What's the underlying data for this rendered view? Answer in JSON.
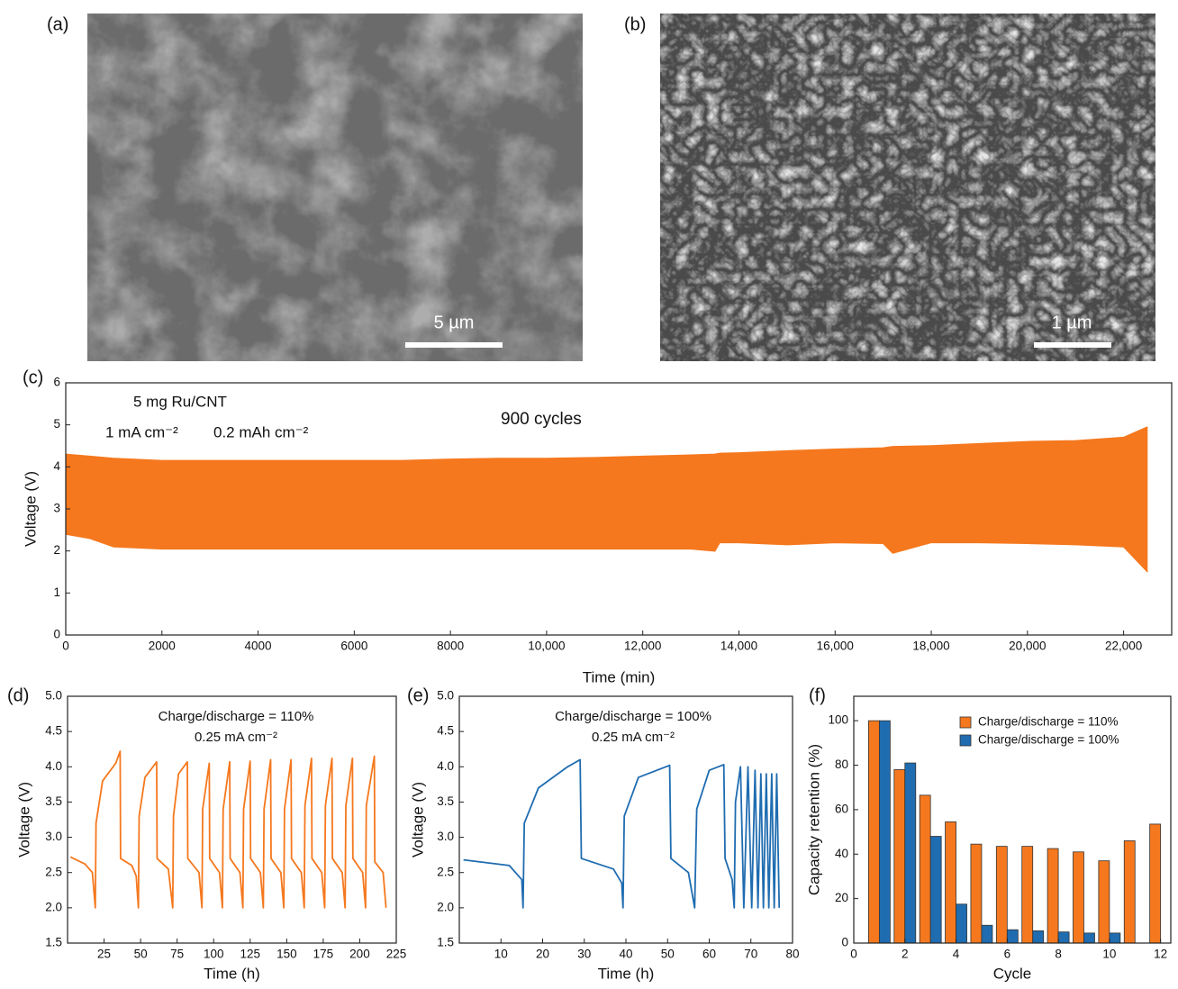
{
  "panels": {
    "a": {
      "label": "(a)",
      "scale_bar": "5 µm"
    },
    "b": {
      "label": "(b)",
      "scale_bar": "1 µm"
    }
  },
  "chart_data": [
    {
      "type": "band",
      "label": "(c)",
      "ylabel": "Voltage (V)",
      "xlabel": "Time (min)",
      "annotations": [
        "5 mg Ru/CNT",
        "1 mA cm⁻²",
        "0.2 mAh cm⁻²",
        "900 cycles"
      ],
      "color": "#f5781e",
      "x": [
        0,
        500,
        1000,
        2000,
        3000,
        4000,
        5000,
        6000,
        7000,
        8000,
        9000,
        10000,
        11000,
        12000,
        13000,
        13500,
        13600,
        14000,
        15000,
        16000,
        17000,
        17200,
        18000,
        19000,
        20000,
        21000,
        22000,
        22500
      ],
      "high": [
        4.3,
        4.25,
        4.2,
        4.15,
        4.15,
        4.15,
        4.15,
        4.15,
        4.15,
        4.18,
        4.2,
        4.2,
        4.22,
        4.25,
        4.28,
        4.3,
        4.32,
        4.33,
        4.38,
        4.42,
        4.45,
        4.48,
        4.5,
        4.55,
        4.6,
        4.62,
        4.7,
        4.95
      ],
      "low": [
        2.4,
        2.3,
        2.1,
        2.05,
        2.05,
        2.05,
        2.05,
        2.05,
        2.05,
        2.05,
        2.05,
        2.05,
        2.05,
        2.05,
        2.05,
        2.0,
        2.2,
        2.2,
        2.15,
        2.2,
        2.18,
        1.95,
        2.2,
        2.2,
        2.18,
        2.15,
        2.1,
        1.5
      ],
      "xlim": [
        0,
        23000
      ],
      "ylim": [
        0,
        6
      ],
      "xticks": [
        0,
        2000,
        4000,
        6000,
        8000,
        {
          "value": 10000,
          "label": "10,000"
        },
        {
          "value": 12000,
          "label": "12,000"
        },
        {
          "value": 14000,
          "label": "14,000"
        },
        {
          "value": 16000,
          "label": "16,000"
        },
        {
          "value": 18000,
          "label": "18,000"
        },
        {
          "value": 20000,
          "label": "20,000"
        },
        {
          "value": 22000,
          "label": "22,000"
        }
      ],
      "yticks": [
        0,
        1,
        2,
        3,
        4,
        5,
        6
      ]
    },
    {
      "type": "line",
      "label": "(d)",
      "ylabel": "Voltage (V)",
      "xlabel": "Time (h)",
      "annotations": [
        "Charge/discharge = 110%",
        "0.25 mA cm⁻²"
      ],
      "color": "#f5781e",
      "x": [
        2,
        12,
        17,
        19,
        19.5,
        24,
        33,
        36,
        36.3,
        44,
        47,
        48.5,
        49,
        53,
        61,
        61.3,
        69,
        72,
        72.5,
        76,
        82,
        82.3,
        90,
        92,
        92.5,
        97,
        97.3,
        104,
        106,
        106.5,
        111,
        111.3,
        118,
        120,
        120.5,
        125,
        125.3,
        132,
        134,
        134.5,
        139,
        139.3,
        146,
        148,
        148.5,
        153,
        153.3,
        160,
        162,
        162.5,
        167,
        167.3,
        174,
        176,
        176.5,
        181,
        181.3,
        188,
        190,
        190.5,
        195,
        195.3,
        202,
        204,
        204.5,
        210,
        210.3,
        216,
        218
      ],
      "values": [
        2.72,
        2.62,
        2.5,
        2.0,
        3.2,
        3.8,
        4.05,
        4.22,
        2.7,
        2.6,
        2.45,
        2.0,
        3.3,
        3.85,
        4.07,
        2.7,
        2.55,
        2.0,
        3.3,
        3.9,
        4.07,
        2.7,
        2.5,
        2.0,
        3.4,
        4.05,
        2.7,
        2.5,
        2.0,
        3.4,
        4.07,
        2.7,
        2.5,
        2.0,
        3.4,
        4.08,
        2.7,
        2.5,
        2.0,
        3.4,
        4.1,
        2.7,
        2.5,
        2.0,
        3.4,
        4.1,
        2.7,
        2.5,
        2.0,
        3.45,
        4.12,
        2.7,
        2.5,
        2.0,
        3.45,
        4.12,
        2.7,
        2.5,
        2.0,
        3.45,
        4.12,
        2.7,
        2.5,
        2.0,
        3.45,
        4.15,
        2.65,
        2.5,
        2.0
      ],
      "xlim": [
        0,
        225
      ],
      "ylim": [
        1.5,
        5
      ],
      "xticks": [
        25,
        50,
        75,
        100,
        125,
        150,
        175,
        200,
        225
      ],
      "yticks": [
        1.5,
        {
          "value": 2,
          "label": "2.0"
        },
        2.5,
        {
          "value": 3,
          "label": "3.0"
        },
        3.5,
        {
          "value": 4,
          "label": "4.0"
        },
        4.5,
        {
          "value": 5,
          "label": "5.0"
        }
      ]
    },
    {
      "type": "line",
      "label": "(e)",
      "ylabel": "Voltage (V)",
      "xlabel": "Time (h)",
      "annotations": [
        "Charge/discharge = 100%",
        "0.25 mA cm⁻²"
      ],
      "color": "#1f6cb0",
      "x": [
        1,
        12,
        15,
        15.3,
        15.6,
        19,
        26,
        29,
        29.3,
        37,
        39,
        39.3,
        39.6,
        43,
        50.5,
        50.8,
        55,
        56.5,
        57,
        60,
        63.5,
        63.8,
        65.5,
        66,
        66.3,
        67.5,
        68.3,
        69.3,
        70.2,
        71,
        71.7,
        72.4,
        73,
        73.7,
        74.3,
        75,
        75.6,
        76.2,
        76.8
      ],
      "values": [
        2.68,
        2.6,
        2.4,
        2.0,
        3.2,
        3.7,
        4.0,
        4.1,
        2.7,
        2.55,
        2.35,
        2.0,
        3.3,
        3.85,
        4.02,
        2.7,
        2.5,
        2.0,
        3.4,
        3.95,
        4.03,
        2.7,
        2.4,
        2.0,
        3.5,
        4.0,
        2.0,
        4.0,
        2.0,
        3.95,
        2.0,
        3.9,
        2.0,
        3.9,
        2.0,
        3.9,
        2.0,
        3.9,
        2.0
      ],
      "xlim": [
        0,
        80
      ],
      "ylim": [
        1.5,
        5
      ],
      "xticks": [
        10,
        20,
        30,
        40,
        50,
        60,
        70,
        80
      ],
      "yticks": [
        1.5,
        {
          "value": 2,
          "label": "2.0"
        },
        2.5,
        {
          "value": 3,
          "label": "3.0"
        },
        3.5,
        {
          "value": 4,
          "label": "4.0"
        },
        4.5,
        {
          "value": 5,
          "label": "5.0"
        }
      ]
    },
    {
      "type": "bar",
      "label": "(f)",
      "ylabel": "Capacity retention (%)",
      "xlabel": "Cycle",
      "x": [
        1,
        2,
        3,
        4,
        5,
        6,
        7,
        8,
        9,
        10,
        11,
        12
      ],
      "series": [
        {
          "name": "Charge/discharge = 110%",
          "color": "#f5781e",
          "values": [
            100,
            78,
            66.5,
            54.5,
            44.5,
            43.5,
            43.5,
            42.5,
            41,
            37,
            46,
            53.5
          ]
        },
        {
          "name": "Charge/discharge = 100%",
          "color": "#1f6cb0",
          "values": [
            100,
            81,
            48,
            17.5,
            8,
            6,
            5.5,
            5,
            4.5,
            4.5,
            null,
            null
          ]
        }
      ],
      "xlim": [
        0,
        12.4
      ],
      "ylim": [
        0,
        111
      ],
      "xticks": [
        0,
        2,
        4,
        6,
        8,
        10,
        12
      ],
      "yticks": [
        0,
        20,
        40,
        60,
        80,
        100
      ]
    }
  ]
}
